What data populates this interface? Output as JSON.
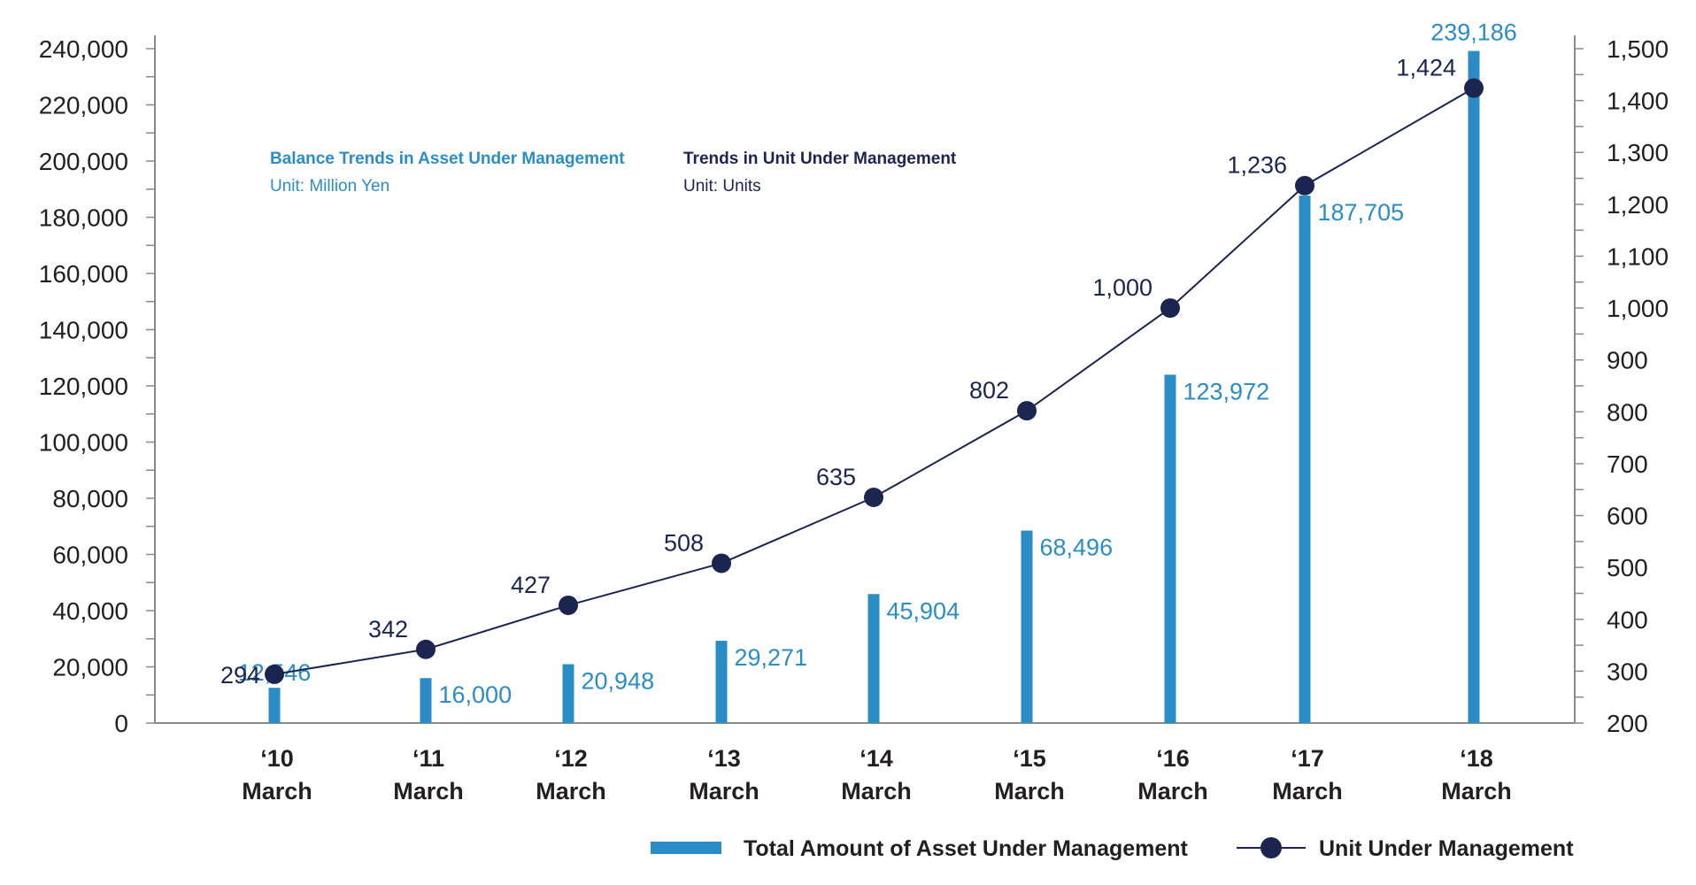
{
  "chart_data": {
    "type": "bar",
    "categories": [
      {
        "year": "‘10",
        "month": "March"
      },
      {
        "year": "‘11",
        "month": "March"
      },
      {
        "year": "‘12",
        "month": "March"
      },
      {
        "year": "‘13",
        "month": "March"
      },
      {
        "year": "‘14",
        "month": "March"
      },
      {
        "year": "‘15",
        "month": "March"
      },
      {
        "year": "‘16",
        "month": "March"
      },
      {
        "year": "‘17",
        "month": "March"
      },
      {
        "year": "‘18",
        "month": "March"
      }
    ],
    "series": [
      {
        "name": "Total Amount of Asset Under Management",
        "type": "bar",
        "axis": "left",
        "values": [
          12546,
          16000,
          20948,
          29271,
          45904,
          68496,
          123972,
          187705,
          239186
        ],
        "labels": [
          "12,546",
          "16,000",
          "20,948",
          "29,271",
          "45,904",
          "68,496",
          "123,972",
          "187,705",
          "239,186"
        ]
      },
      {
        "name": "Unit Under Management",
        "type": "line",
        "axis": "right",
        "values": [
          294,
          342,
          427,
          508,
          635,
          802,
          1000,
          1236,
          1424
        ],
        "labels": [
          "294",
          "342",
          "427",
          "508",
          "635",
          "802",
          "1,000",
          "1,236",
          "1,424"
        ]
      }
    ],
    "left_axis": {
      "ylim": [
        0,
        240000
      ],
      "ticks": [
        "0",
        "20,000",
        "40,000",
        "60,000",
        "80,000",
        "100,000",
        "120,000",
        "140,000",
        "160,000",
        "180,000",
        "200,000",
        "220,000",
        "240,000"
      ]
    },
    "right_axis": {
      "ylim": [
        200,
        1500
      ],
      "ticks": [
        "200",
        "300",
        "400",
        "500",
        "600",
        "700",
        "800",
        "900",
        "1,000",
        "1,100",
        "1,200",
        "1,300",
        "1,400",
        "1,500"
      ]
    },
    "annotations": [
      {
        "title": "Balance Trends in Asset Under Management",
        "subtitle": "Unit: Million Yen",
        "color": "#2a8dc5"
      },
      {
        "title": "Trends in Unit Under Management",
        "subtitle": "Unit: Units",
        "color": "#1b2550"
      }
    ],
    "legend_position": "bottom-right",
    "grid": false,
    "colors": {
      "bar": "#2a8dc5",
      "line": "#1b2550",
      "axis": "#8a8a8a"
    }
  }
}
